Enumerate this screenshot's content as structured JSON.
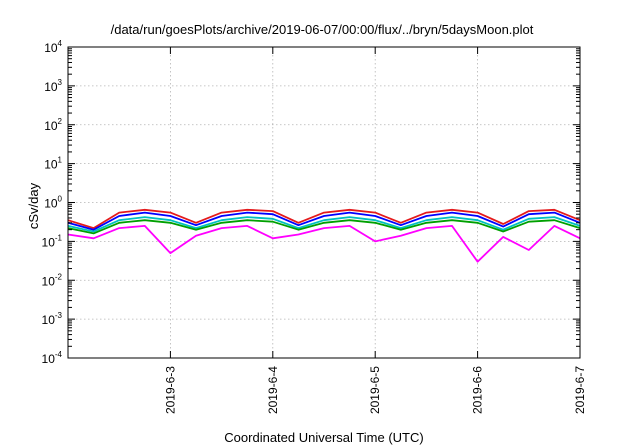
{
  "chart_data": {
    "type": "line",
    "title": "/data/run/goesPlots/archive/2019-06-07/00:00/flux/../bryn/5daysMoon.plot",
    "xlabel": "Coordinated Universal Time (UTC)",
    "ylabel": "cSv/day",
    "y_scale": "log",
    "ylim": [
      0.0001,
      10000
    ],
    "xlim": [
      "2019-06-02T00:00",
      "2019-06-07T00:00"
    ],
    "x_ticks": [
      "2019-6-3",
      "2019-6-4",
      "2019-6-5",
      "2019-6-6",
      "2019-6-7"
    ],
    "x_tick_dates": [
      "2019-06-03T00:00",
      "2019-06-04T00:00",
      "2019-06-05T00:00",
      "2019-06-06T00:00",
      "2019-06-07T00:00"
    ],
    "y_ticks": [
      {
        "base": "10",
        "exp": "4",
        "value": 10000
      },
      {
        "base": "10",
        "exp": "3",
        "value": 1000
      },
      {
        "base": "10",
        "exp": "2",
        "value": 100
      },
      {
        "base": "10",
        "exp": "1",
        "value": 10
      },
      {
        "base": "10",
        "exp": "0",
        "value": 1
      },
      {
        "base": "10",
        "exp": "-1",
        "value": 0.1
      },
      {
        "base": "10",
        "exp": "-2",
        "value": 0.01
      },
      {
        "base": "10",
        "exp": "-3",
        "value": 0.001
      },
      {
        "base": "10",
        "exp": "-4",
        "value": 0.0001
      }
    ],
    "grid": true,
    "legend": "none",
    "series": [
      {
        "color": "#e41a1c",
        "x": [
          "2019-06-02T00:00",
          "2019-06-02T06:00",
          "2019-06-02T12:00",
          "2019-06-02T18:00",
          "2019-06-03T00:00",
          "2019-06-03T06:00",
          "2019-06-03T12:00",
          "2019-06-03T18:00",
          "2019-06-04T00:00",
          "2019-06-04T06:00",
          "2019-06-04T12:00",
          "2019-06-04T18:00",
          "2019-06-05T00:00",
          "2019-06-05T06:00",
          "2019-06-05T12:00",
          "2019-06-05T18:00",
          "2019-06-06T00:00",
          "2019-06-06T06:00",
          "2019-06-06T12:00",
          "2019-06-06T18:00",
          "2019-06-07T00:00"
        ],
        "values": [
          0.35,
          0.22,
          0.55,
          0.65,
          0.55,
          0.3,
          0.55,
          0.65,
          0.6,
          0.3,
          0.55,
          0.65,
          0.55,
          0.3,
          0.55,
          0.65,
          0.55,
          0.28,
          0.6,
          0.65,
          0.35
        ]
      },
      {
        "color": "#0000ff",
        "x": [
          "2019-06-02T00:00",
          "2019-06-02T06:00",
          "2019-06-02T12:00",
          "2019-06-02T18:00",
          "2019-06-03T00:00",
          "2019-06-03T06:00",
          "2019-06-03T12:00",
          "2019-06-03T18:00",
          "2019-06-04T00:00",
          "2019-06-04T06:00",
          "2019-06-04T12:00",
          "2019-06-04T18:00",
          "2019-06-05T00:00",
          "2019-06-05T06:00",
          "2019-06-05T12:00",
          "2019-06-05T18:00",
          "2019-06-06T00:00",
          "2019-06-06T06:00",
          "2019-06-06T12:00",
          "2019-06-06T18:00",
          "2019-06-07T00:00"
        ],
        "values": [
          0.3,
          0.2,
          0.45,
          0.55,
          0.45,
          0.26,
          0.45,
          0.55,
          0.5,
          0.26,
          0.45,
          0.55,
          0.45,
          0.26,
          0.45,
          0.55,
          0.45,
          0.24,
          0.5,
          0.55,
          0.3
        ]
      },
      {
        "color": "#00c0c0",
        "x": [
          "2019-06-02T00:00",
          "2019-06-02T06:00",
          "2019-06-02T12:00",
          "2019-06-02T18:00",
          "2019-06-03T00:00",
          "2019-06-03T06:00",
          "2019-06-03T12:00",
          "2019-06-03T18:00",
          "2019-06-04T00:00",
          "2019-06-04T06:00",
          "2019-06-04T12:00",
          "2019-06-04T18:00",
          "2019-06-05T00:00",
          "2019-06-05T06:00",
          "2019-06-05T12:00",
          "2019-06-05T18:00",
          "2019-06-06T00:00",
          "2019-06-06T06:00",
          "2019-06-06T12:00",
          "2019-06-06T18:00",
          "2019-06-07T00:00"
        ],
        "values": [
          0.25,
          0.18,
          0.35,
          0.42,
          0.35,
          0.22,
          0.35,
          0.42,
          0.38,
          0.22,
          0.35,
          0.42,
          0.35,
          0.22,
          0.35,
          0.42,
          0.35,
          0.2,
          0.38,
          0.42,
          0.25
        ]
      },
      {
        "color": "#00a000",
        "x": [
          "2019-06-02T00:00",
          "2019-06-02T06:00",
          "2019-06-02T12:00",
          "2019-06-02T18:00",
          "2019-06-03T00:00",
          "2019-06-03T06:00",
          "2019-06-03T12:00",
          "2019-06-03T18:00",
          "2019-06-04T00:00",
          "2019-06-04T06:00",
          "2019-06-04T12:00",
          "2019-06-04T18:00",
          "2019-06-05T00:00",
          "2019-06-05T06:00",
          "2019-06-05T12:00",
          "2019-06-05T18:00",
          "2019-06-06T00:00",
          "2019-06-06T06:00",
          "2019-06-06T12:00",
          "2019-06-06T18:00",
          "2019-06-07T00:00"
        ],
        "values": [
          0.22,
          0.16,
          0.3,
          0.35,
          0.3,
          0.2,
          0.3,
          0.35,
          0.32,
          0.2,
          0.3,
          0.35,
          0.3,
          0.2,
          0.3,
          0.35,
          0.3,
          0.18,
          0.32,
          0.35,
          0.22
        ]
      },
      {
        "color": "#ff00ff",
        "x": [
          "2019-06-02T00:00",
          "2019-06-02T06:00",
          "2019-06-02T12:00",
          "2019-06-02T18:00",
          "2019-06-03T00:00",
          "2019-06-03T06:00",
          "2019-06-03T12:00",
          "2019-06-03T18:00",
          "2019-06-04T00:00",
          "2019-06-04T06:00",
          "2019-06-04T12:00",
          "2019-06-04T18:00",
          "2019-06-05T00:00",
          "2019-06-05T06:00",
          "2019-06-05T12:00",
          "2019-06-05T18:00",
          "2019-06-06T00:00",
          "2019-06-06T06:00",
          "2019-06-06T12:00",
          "2019-06-06T18:00",
          "2019-06-07T00:00"
        ],
        "values": [
          0.15,
          0.12,
          0.22,
          0.25,
          0.05,
          0.14,
          0.22,
          0.25,
          0.12,
          0.15,
          0.22,
          0.25,
          0.1,
          0.14,
          0.22,
          0.25,
          0.03,
          0.13,
          0.06,
          0.25,
          0.12
        ]
      }
    ]
  }
}
